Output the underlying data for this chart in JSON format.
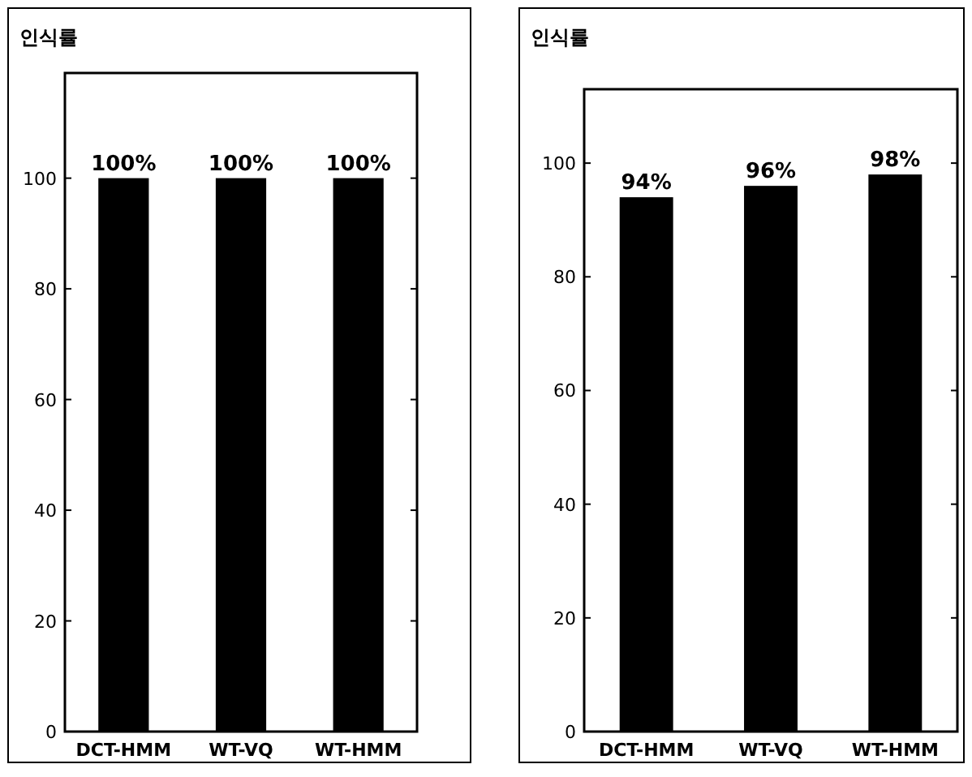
{
  "chart_data": [
    {
      "type": "bar",
      "title": "인식률",
      "categories": [
        "DCT-HMM",
        "WT-VQ",
        "WT-HMM"
      ],
      "values": [
        100,
        100,
        100
      ],
      "value_labels": [
        "100%",
        "100%",
        "100%"
      ],
      "color": "#000000",
      "ylim": [
        0,
        119
      ],
      "yticks": [
        0,
        20,
        40,
        60,
        80,
        100
      ]
    },
    {
      "type": "bar",
      "title": "인식률",
      "categories": [
        "DCT-HMM",
        "WT-VQ",
        "WT-HMM"
      ],
      "values": [
        94,
        96,
        98
      ],
      "value_labels": [
        "94%",
        "96%",
        "98%"
      ],
      "color": "#000000",
      "ylim": [
        0,
        113
      ],
      "yticks": [
        0,
        20,
        40,
        60,
        80,
        100
      ]
    }
  ]
}
